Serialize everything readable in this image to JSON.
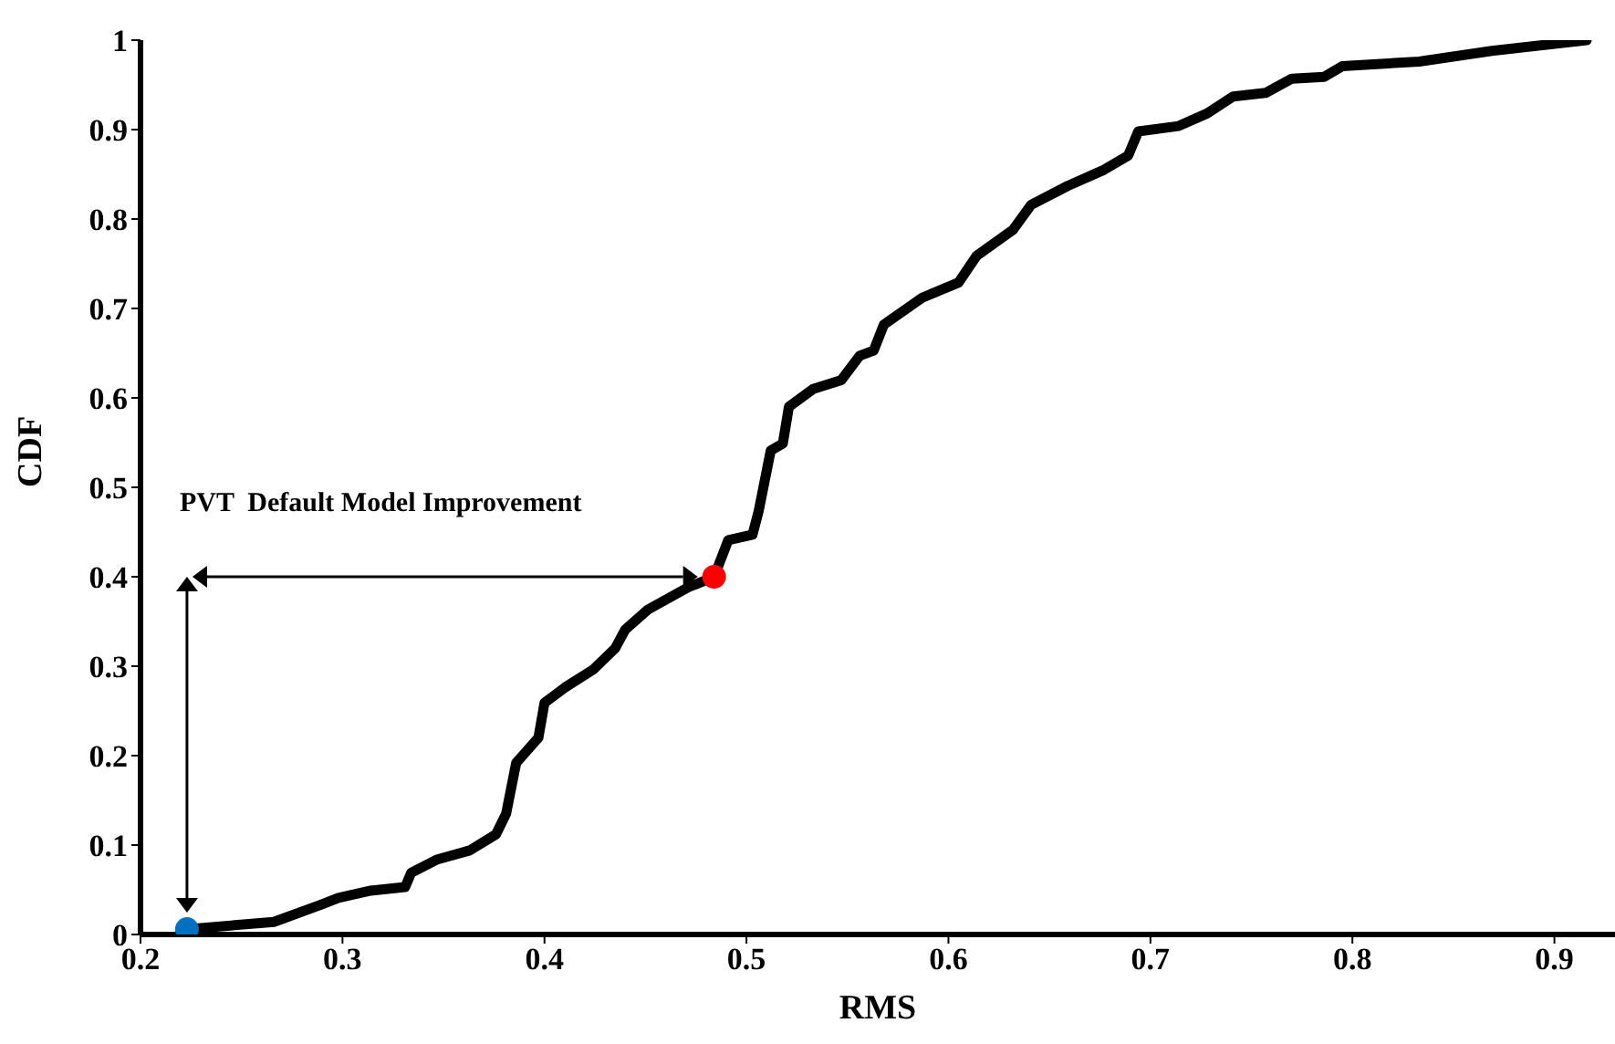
{
  "chart_data": {
    "type": "line",
    "xlabel": "RMS",
    "ylabel": "CDF",
    "xlim": [
      0.2,
      0.93
    ],
    "ylim": [
      0,
      1
    ],
    "xticks": [
      0.2,
      0.3,
      0.4,
      0.5,
      0.6,
      0.7,
      0.8,
      0.9
    ],
    "yticks": [
      0,
      0.1,
      0.2,
      0.3,
      0.4,
      0.5,
      0.6,
      0.7,
      0.8,
      0.9,
      1
    ],
    "grid": false,
    "marker": "none",
    "line_style": "solid",
    "annotations": [
      "PVT  Default Model Improvement"
    ],
    "series": [
      {
        "color": "#000000",
        "x": [
          0.223,
          0.266,
          0.289,
          0.298,
          0.314,
          0.331,
          0.334,
          0.347,
          0.363,
          0.376,
          0.381,
          0.386,
          0.397,
          0.4,
          0.41,
          0.424,
          0.435,
          0.44,
          0.451,
          0.471,
          0.484,
          0.491,
          0.503,
          0.506,
          0.512,
          0.518,
          0.521,
          0.533,
          0.547,
          0.556,
          0.563,
          0.568,
          0.587,
          0.605,
          0.614,
          0.632,
          0.641,
          0.659,
          0.677,
          0.689,
          0.694,
          0.714,
          0.728,
          0.741,
          0.757,
          0.77,
          0.786,
          0.795,
          0.833,
          0.869,
          0.916
        ],
        "values": [
          0.006,
          0.014,
          0.033,
          0.041,
          0.049,
          0.053,
          0.069,
          0.084,
          0.094,
          0.112,
          0.135,
          0.192,
          0.22,
          0.259,
          0.276,
          0.296,
          0.32,
          0.341,
          0.363,
          0.388,
          0.4,
          0.441,
          0.447,
          0.473,
          0.541,
          0.549,
          0.59,
          0.61,
          0.62,
          0.647,
          0.653,
          0.682,
          0.712,
          0.729,
          0.759,
          0.788,
          0.816,
          0.837,
          0.855,
          0.871,
          0.898,
          0.904,
          0.918,
          0.937,
          0.941,
          0.957,
          0.959,
          0.971,
          0.976,
          0.988,
          1
        ]
      },
      {
        "type": "scatter",
        "marker": "circle",
        "color": "#0070c0",
        "x": [
          0.223
        ],
        "values": [
          0.006
        ]
      },
      {
        "type": "scatter",
        "marker": "circle",
        "color": "#ff0000",
        "x": [
          0.484
        ],
        "values": [
          0.4
        ]
      }
    ]
  }
}
